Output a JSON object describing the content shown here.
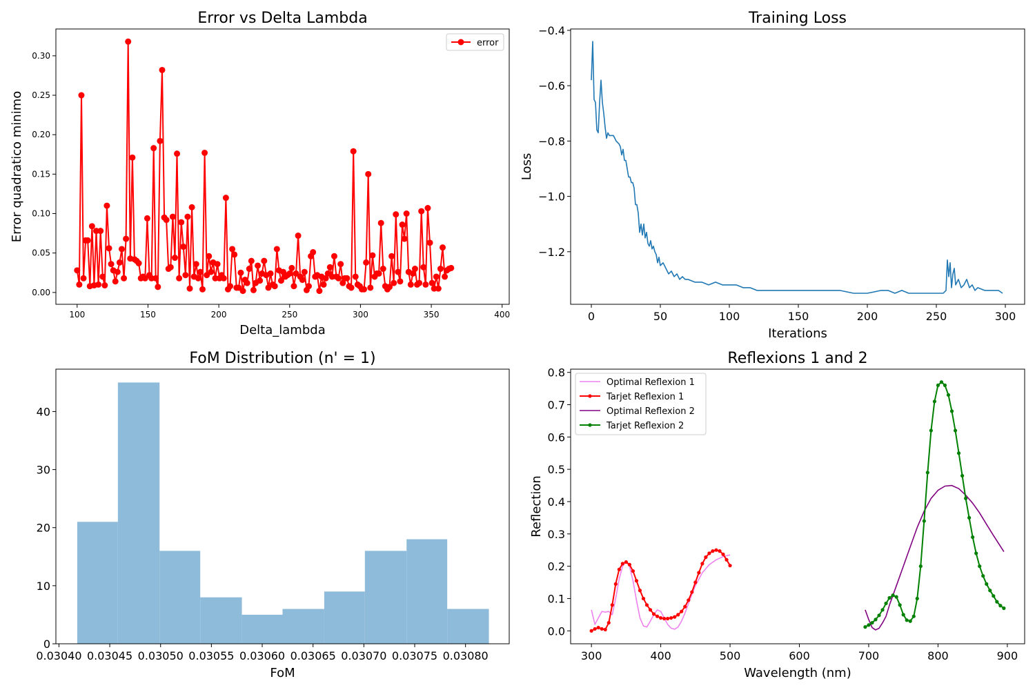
{
  "chart_data": [
    {
      "type": "line",
      "title": "Error vs Delta Lambda",
      "xlabel": "Delta_lambda",
      "ylabel": "Error quadratico minimo",
      "xlim": [
        85,
        405
      ],
      "ylim": [
        -0.015,
        0.334
      ],
      "xticks": [
        100,
        150,
        200,
        250,
        300,
        350,
        400
      ],
      "yticks": [
        0.0,
        0.05,
        0.1,
        0.15,
        0.2,
        0.25,
        0.3
      ],
      "legend": "top-right",
      "series": [
        {
          "name": "error",
          "color": "#ff0000",
          "marker": "circle",
          "x_start": 100,
          "x_step": 1.5,
          "values": [
            0.028,
            0.01,
            0.25,
            0.018,
            0.066,
            0.066,
            0.008,
            0.084,
            0.009,
            0.078,
            0.01,
            0.078,
            0.02,
            0.009,
            0.11,
            0.056,
            0.036,
            0.028,
            0.014,
            0.026,
            0.038,
            0.055,
            0.018,
            0.068,
            0.318,
            0.043,
            0.171,
            0.042,
            0.04,
            0.037,
            0.018,
            0.02,
            0.018,
            0.094,
            0.022,
            0.018,
            0.183,
            0.018,
            0.007,
            0.192,
            0.282,
            0.095,
            0.092,
            0.03,
            0.032,
            0.096,
            0.044,
            0.176,
            0.018,
            0.089,
            0.058,
            0.022,
            0.096,
            0.005,
            0.108,
            0.02,
            0.036,
            0.018,
            0.026,
            0.004,
            0.177,
            0.022,
            0.046,
            0.026,
            0.038,
            0.018,
            0.036,
            0.018,
            0.022,
            0.018,
            0.12,
            0.004,
            0.008,
            0.055,
            0.048,
            0.006,
            0.006,
            0.025,
            0.002,
            0.016,
            0.012,
            0.03,
            0.04,
            0.003,
            0.012,
            0.034,
            0.015,
            0.024,
            0.04,
            0.022,
            0.006,
            0.024,
            0.01,
            0.008,
            0.055,
            0.028,
            0.015,
            0.026,
            0.02,
            0.022,
            0.024,
            0.031,
            0.008,
            0.024,
            0.072,
            0.02,
            0.016,
            0.026,
            0.003,
            0.008,
            0.046,
            0.051,
            0.02,
            0.022,
            0.002,
            0.02,
            0.01,
            0.018,
            0.024,
            0.032,
            0.02,
            0.046,
            0.02,
            0.018,
            0.036,
            0.012,
            0.018,
            0.018,
            0.008,
            0.006,
            0.179,
            0.02,
            0.01,
            0.008,
            0.004,
            0.004,
            0.038,
            0.15,
            0.006,
            0.047,
            0.02,
            0.024,
            0.024,
            0.088,
            0.03,
            0.008,
            0.004,
            0.007,
            0.046,
            0.012,
            0.099,
            0.026,
            0.014,
            0.086,
            0.068,
            0.1,
            0.026,
            0.01,
            0.024,
            0.03,
            0.01,
            0.012,
            0.103,
            0.032,
            0.01,
            0.107,
            0.063,
            0.012,
            0.005,
            0.02,
            0.005,
            0.03,
            0.057,
            0.02,
            0.028,
            0.03,
            0.031
          ]
        }
      ]
    },
    {
      "type": "line",
      "title": "Training Loss",
      "xlabel": "Iterations",
      "ylabel": "Loss",
      "xlim": [
        -15,
        314
      ],
      "ylim": [
        -1.39,
        -0.395
      ],
      "xticks": [
        0,
        50,
        100,
        150,
        200,
        250,
        300
      ],
      "yticks": [
        -0.4,
        -0.6,
        -0.8,
        -1.0,
        -1.2
      ],
      "ytick_labels": [
        "−0.4",
        "−0.6",
        "−0.8",
        "−1.0",
        "−1.2"
      ],
      "series": [
        {
          "color": "#1f77b4",
          "x": [
            0,
            1,
            2,
            3,
            4,
            5,
            6,
            7,
            8,
            9,
            10,
            11,
            12,
            13,
            14,
            16,
            18,
            20,
            21,
            22,
            23,
            24,
            25,
            26,
            27,
            28,
            29,
            30,
            31,
            32,
            33,
            34,
            35,
            36,
            37,
            38,
            39,
            40,
            41,
            42,
            43,
            44,
            45,
            46,
            47,
            48,
            49,
            50,
            52,
            54,
            56,
            58,
            60,
            62,
            64,
            66,
            68,
            70,
            75,
            80,
            85,
            90,
            95,
            100,
            105,
            110,
            115,
            120,
            130,
            140,
            150,
            160,
            170,
            180,
            190,
            200,
            210,
            215,
            220,
            225,
            230,
            240,
            250,
            255,
            257,
            258,
            259,
            260,
            261,
            262,
            263,
            264,
            265,
            266,
            268,
            270,
            272,
            274,
            276,
            278,
            280,
            285,
            290,
            295,
            298
          ],
          "values": [
            -0.58,
            -0.44,
            -0.65,
            -0.66,
            -0.76,
            -0.77,
            -0.66,
            -0.58,
            -0.66,
            -0.7,
            -0.75,
            -0.79,
            -0.77,
            -0.78,
            -0.78,
            -0.78,
            -0.8,
            -0.81,
            -0.82,
            -0.85,
            -0.83,
            -0.87,
            -0.87,
            -0.9,
            -0.93,
            -0.93,
            -0.95,
            -0.95,
            -0.97,
            -1.03,
            -1.03,
            -1.06,
            -1.13,
            -1.1,
            -1.14,
            -1.1,
            -1.15,
            -1.13,
            -1.17,
            -1.18,
            -1.16,
            -1.19,
            -1.18,
            -1.2,
            -1.21,
            -1.24,
            -1.22,
            -1.25,
            -1.24,
            -1.26,
            -1.28,
            -1.27,
            -1.29,
            -1.28,
            -1.3,
            -1.29,
            -1.3,
            -1.3,
            -1.31,
            -1.31,
            -1.32,
            -1.31,
            -1.32,
            -1.32,
            -1.32,
            -1.33,
            -1.33,
            -1.34,
            -1.34,
            -1.34,
            -1.34,
            -1.34,
            -1.34,
            -1.34,
            -1.35,
            -1.35,
            -1.34,
            -1.34,
            -1.35,
            -1.34,
            -1.35,
            -1.35,
            -1.35,
            -1.35,
            -1.34,
            -1.23,
            -1.29,
            -1.24,
            -1.33,
            -1.28,
            -1.26,
            -1.32,
            -1.31,
            -1.3,
            -1.33,
            -1.32,
            -1.3,
            -1.33,
            -1.32,
            -1.34,
            -1.33,
            -1.34,
            -1.34,
            -1.34,
            -1.35
          ]
        }
      ]
    },
    {
      "type": "bar",
      "title": "FoM Distribution (n' = 1)",
      "xlabel": "FoM",
      "ylabel": "",
      "xlim": [
        0.030397,
        0.030843
      ],
      "ylim": [
        0,
        47.3
      ],
      "xticks": [
        0.0304,
        0.03045,
        0.0305,
        0.03055,
        0.0306,
        0.03065,
        0.0307,
        0.03075,
        0.0308
      ],
      "xtick_labels": [
        "0.03040",
        "0.03045",
        "0.03050",
        "0.03055",
        "0.03060",
        "0.03065",
        "0.03070",
        "0.03075",
        "0.03080"
      ],
      "yticks": [
        0,
        10,
        20,
        30,
        40
      ],
      "bin_edges": [
        0.030418,
        0.030458,
        0.030499,
        0.030539,
        0.03058,
        0.03062,
        0.030661,
        0.030701,
        0.030742,
        0.030782,
        0.030823
      ],
      "values": [
        21,
        45,
        16,
        8,
        5,
        6,
        9,
        16,
        18,
        6
      ],
      "color": "#8fbbda"
    },
    {
      "type": "line",
      "title": "Reflexions 1 and 2",
      "xlabel": "Wavelength (nm)",
      "ylabel": "Reflection",
      "xlim": [
        270,
        925
      ],
      "ylim": [
        -0.04,
        0.81
      ],
      "xticks": [
        300,
        400,
        500,
        600,
        700,
        800,
        900
      ],
      "yticks": [
        0.0,
        0.1,
        0.2,
        0.3,
        0.4,
        0.5,
        0.6,
        0.7,
        0.8
      ],
      "legend": "top-left",
      "series": [
        {
          "name": "Optimal Reflexion 1",
          "color": "#ee82ee",
          "marker": "none",
          "x": [
            300,
            305,
            310,
            315,
            320,
            325,
            330,
            335,
            340,
            345,
            350,
            355,
            360,
            365,
            370,
            375,
            380,
            385,
            390,
            395,
            400,
            405,
            410,
            415,
            420,
            425,
            430,
            435,
            440,
            450,
            460,
            470,
            480,
            490,
            500
          ],
          "values": [
            0.065,
            0.02,
            0.04,
            0.06,
            0.058,
            0.06,
            0.05,
            0.1,
            0.16,
            0.2,
            0.215,
            0.2,
            0.155,
            0.095,
            0.04,
            0.015,
            0.012,
            0.03,
            0.05,
            0.065,
            0.06,
            0.04,
            0.02,
            0.008,
            0.005,
            0.012,
            0.03,
            0.055,
            0.085,
            0.14,
            0.18,
            0.205,
            0.22,
            0.23,
            0.235
          ]
        },
        {
          "name": "Tarjet Reflexion 1",
          "color": "#ff0000",
          "marker": "dot",
          "x": [
            300,
            305,
            310,
            315,
            320,
            325,
            330,
            335,
            340,
            345,
            350,
            355,
            360,
            365,
            370,
            375,
            380,
            385,
            390,
            395,
            400,
            405,
            410,
            415,
            420,
            425,
            430,
            435,
            440,
            445,
            450,
            455,
            460,
            465,
            470,
            475,
            480,
            485,
            490,
            495,
            500
          ],
          "values": [
            0.0,
            0.006,
            0.01,
            0.006,
            0.004,
            0.025,
            0.08,
            0.145,
            0.19,
            0.208,
            0.213,
            0.205,
            0.185,
            0.155,
            0.125,
            0.1,
            0.08,
            0.065,
            0.052,
            0.045,
            0.04,
            0.038,
            0.038,
            0.04,
            0.043,
            0.05,
            0.06,
            0.075,
            0.095,
            0.12,
            0.15,
            0.18,
            0.208,
            0.228,
            0.24,
            0.247,
            0.25,
            0.247,
            0.237,
            0.22,
            0.202
          ]
        },
        {
          "name": "Optimal Reflexion 2",
          "color": "#800080",
          "marker": "none",
          "x": [
            695,
            700,
            705,
            710,
            715,
            720,
            725,
            730,
            740,
            750,
            760,
            770,
            780,
            790,
            800,
            810,
            820,
            830,
            840,
            850,
            860,
            870,
            880,
            895
          ],
          "values": [
            0.065,
            0.035,
            0.01,
            0.003,
            0.008,
            0.025,
            0.045,
            0.08,
            0.14,
            0.2,
            0.26,
            0.32,
            0.37,
            0.41,
            0.435,
            0.448,
            0.45,
            0.44,
            0.42,
            0.395,
            0.365,
            0.33,
            0.295,
            0.245
          ]
        },
        {
          "name": "Tarjet Reflexion 2",
          "color": "#008000",
          "marker": "dot",
          "x": [
            695,
            700,
            705,
            710,
            715,
            720,
            725,
            730,
            735,
            740,
            745,
            750,
            755,
            760,
            765,
            770,
            775,
            780,
            785,
            790,
            795,
            800,
            805,
            810,
            815,
            820,
            825,
            830,
            835,
            840,
            845,
            850,
            855,
            860,
            865,
            870,
            875,
            880,
            885,
            890,
            895
          ],
          "values": [
            0.012,
            0.018,
            0.025,
            0.035,
            0.048,
            0.065,
            0.085,
            0.102,
            0.11,
            0.105,
            0.08,
            0.05,
            0.033,
            0.03,
            0.045,
            0.1,
            0.2,
            0.34,
            0.49,
            0.62,
            0.71,
            0.76,
            0.77,
            0.76,
            0.73,
            0.68,
            0.62,
            0.55,
            0.48,
            0.41,
            0.35,
            0.29,
            0.24,
            0.2,
            0.17,
            0.145,
            0.125,
            0.108,
            0.09,
            0.078,
            0.07
          ]
        }
      ]
    }
  ]
}
